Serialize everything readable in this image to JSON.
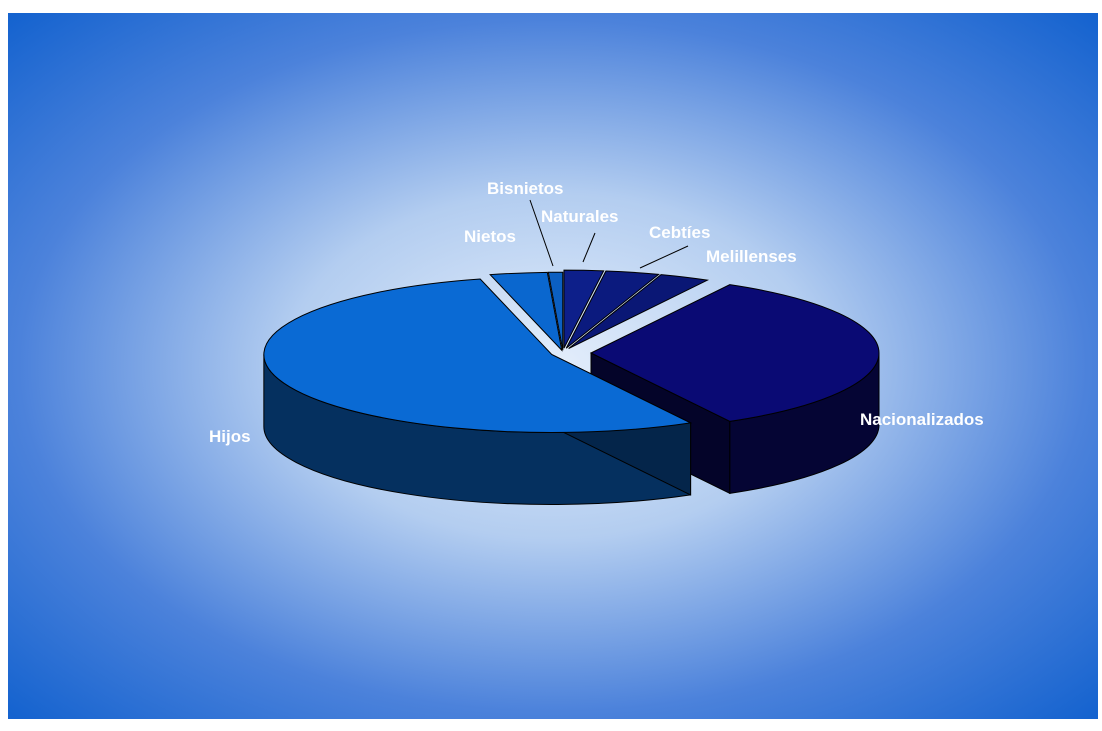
{
  "chart_data": {
    "type": "pie",
    "style": "3d-exploded",
    "title": "",
    "slices": [
      {
        "label": "Naturales",
        "value": 2.2,
        "color": "#0d1f8a"
      },
      {
        "label": "Cebtíes",
        "value": 3.0,
        "color": "#0b1a7e"
      },
      {
        "label": "Melillenses",
        "value": 2.8,
        "color": "#0a1775"
      },
      {
        "label": "Nacionalizados",
        "value": 34.0,
        "color": "#0a0a74"
      },
      {
        "label": "Hijos",
        "value": 54.0,
        "color": "#0a6ad4"
      },
      {
        "label": "Nietos",
        "value": 3.2,
        "color": "#0a67cf"
      },
      {
        "label": "Bisnietos",
        "value": 0.8,
        "color": "#0b5fc2"
      }
    ]
  }
}
